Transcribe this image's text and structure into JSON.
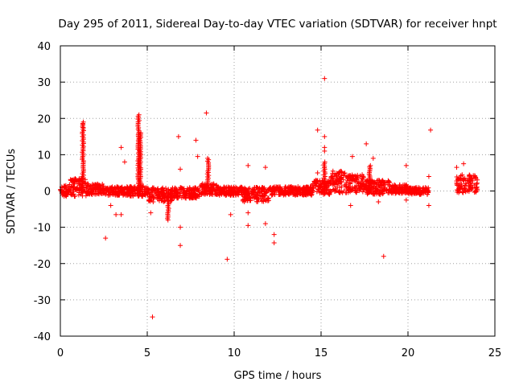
{
  "chart_data": {
    "type": "scatter",
    "title": "Day 295 of 2011, Sidereal Day-to-day VTEC variation (SDTVAR) for receiver hnpt",
    "xlabel": "GPS time / hours",
    "ylabel": "SDTVAR / TECUs",
    "xlim": [
      0,
      25
    ],
    "ylim": [
      -40,
      40
    ],
    "xticks": [
      0,
      5,
      10,
      15,
      20,
      25
    ],
    "yticks": [
      -40,
      -30,
      -20,
      -10,
      0,
      10,
      20,
      30,
      40
    ],
    "grid": true,
    "marker": "+",
    "color": "#ff0000",
    "band": {
      "description": "dense cluster of points forming a band near zero",
      "segments": [
        {
          "x0": 0.0,
          "x1": 0.5,
          "center": 0.0,
          "half_width": 1.5
        },
        {
          "x0": 0.5,
          "x1": 1.5,
          "center": 1.0,
          "half_width": 2.5
        },
        {
          "x0": 1.5,
          "x1": 2.5,
          "center": 0.5,
          "half_width": 1.5
        },
        {
          "x0": 2.5,
          "x1": 4.0,
          "center": 0.0,
          "half_width": 1.2
        },
        {
          "x0": 4.0,
          "x1": 5.0,
          "center": 0.0,
          "half_width": 1.5
        },
        {
          "x0": 5.0,
          "x1": 6.5,
          "center": -1.0,
          "half_width": 2.0
        },
        {
          "x0": 6.5,
          "x1": 8.0,
          "center": -0.5,
          "half_width": 1.5
        },
        {
          "x0": 8.0,
          "x1": 9.0,
          "center": 0.5,
          "half_width": 1.5
        },
        {
          "x0": 9.0,
          "x1": 10.5,
          "center": 0.0,
          "half_width": 1.2
        },
        {
          "x0": 10.5,
          "x1": 12.0,
          "center": -1.0,
          "half_width": 2.0
        },
        {
          "x0": 12.0,
          "x1": 14.5,
          "center": 0.0,
          "half_width": 1.2
        },
        {
          "x0": 14.5,
          "x1": 15.5,
          "center": 1.0,
          "half_width": 2.0
        },
        {
          "x0": 15.5,
          "x1": 16.5,
          "center": 2.5,
          "half_width": 3.0
        },
        {
          "x0": 16.5,
          "x1": 17.5,
          "center": 2.0,
          "half_width": 2.5
        },
        {
          "x0": 17.5,
          "x1": 19.0,
          "center": 1.0,
          "half_width": 2.0
        },
        {
          "x0": 19.0,
          "x1": 20.0,
          "center": 0.5,
          "half_width": 1.2
        },
        {
          "x0": 20.0,
          "x1": 21.2,
          "center": 0.0,
          "half_width": 1.0
        },
        {
          "x0": 22.8,
          "x1": 24.0,
          "center": 2.0,
          "half_width": 2.5
        }
      ]
    },
    "spikes": [
      {
        "x": 1.3,
        "y0": 0,
        "y1": 19
      },
      {
        "x": 4.5,
        "y0": 0,
        "y1": 21
      },
      {
        "x": 4.6,
        "y0": 0,
        "y1": 16
      },
      {
        "x": 8.5,
        "y0": 0,
        "y1": 9
      },
      {
        "x": 15.2,
        "y0": 0,
        "y1": 8
      },
      {
        "x": 17.8,
        "y0": 0,
        "y1": 7
      },
      {
        "x": 6.2,
        "y0": 0,
        "y1": -8
      }
    ],
    "outliers": [
      [
        1.3,
        18.5
      ],
      [
        1.3,
        17.5
      ],
      [
        3.5,
        12
      ],
      [
        3.7,
        8
      ],
      [
        2.6,
        -13
      ],
      [
        3.2,
        -6.5
      ],
      [
        3.5,
        -6.5
      ],
      [
        2.9,
        -4
      ],
      [
        5.3,
        -34.7
      ],
      [
        5.2,
        -6
      ],
      [
        6.8,
        15
      ],
      [
        6.9,
        6
      ],
      [
        6.9,
        -15
      ],
      [
        6.9,
        -10
      ],
      [
        7.8,
        14
      ],
      [
        7.9,
        9.5
      ],
      [
        8.4,
        21.5
      ],
      [
        9.6,
        -18.8
      ],
      [
        9.8,
        -6.5
      ],
      [
        10.8,
        7
      ],
      [
        10.8,
        -9.5
      ],
      [
        10.8,
        -6
      ],
      [
        11.8,
        6.5
      ],
      [
        11.8,
        -9
      ],
      [
        12.3,
        -12
      ],
      [
        12.3,
        -14.3
      ],
      [
        14.8,
        16.8
      ],
      [
        14.8,
        5
      ],
      [
        15.2,
        31
      ],
      [
        15.2,
        15
      ],
      [
        15.2,
        12
      ],
      [
        15.2,
        11
      ],
      [
        16.8,
        9.5
      ],
      [
        17.6,
        13
      ],
      [
        18.0,
        9
      ],
      [
        18.6,
        -18
      ],
      [
        18.3,
        -3
      ],
      [
        19.9,
        7
      ],
      [
        19.9,
        -2.5
      ],
      [
        21.3,
        16.8
      ],
      [
        21.2,
        4
      ],
      [
        21.2,
        -4
      ],
      [
        22.8,
        6.5
      ],
      [
        23.2,
        7.5
      ],
      [
        16.7,
        -4
      ]
    ]
  }
}
